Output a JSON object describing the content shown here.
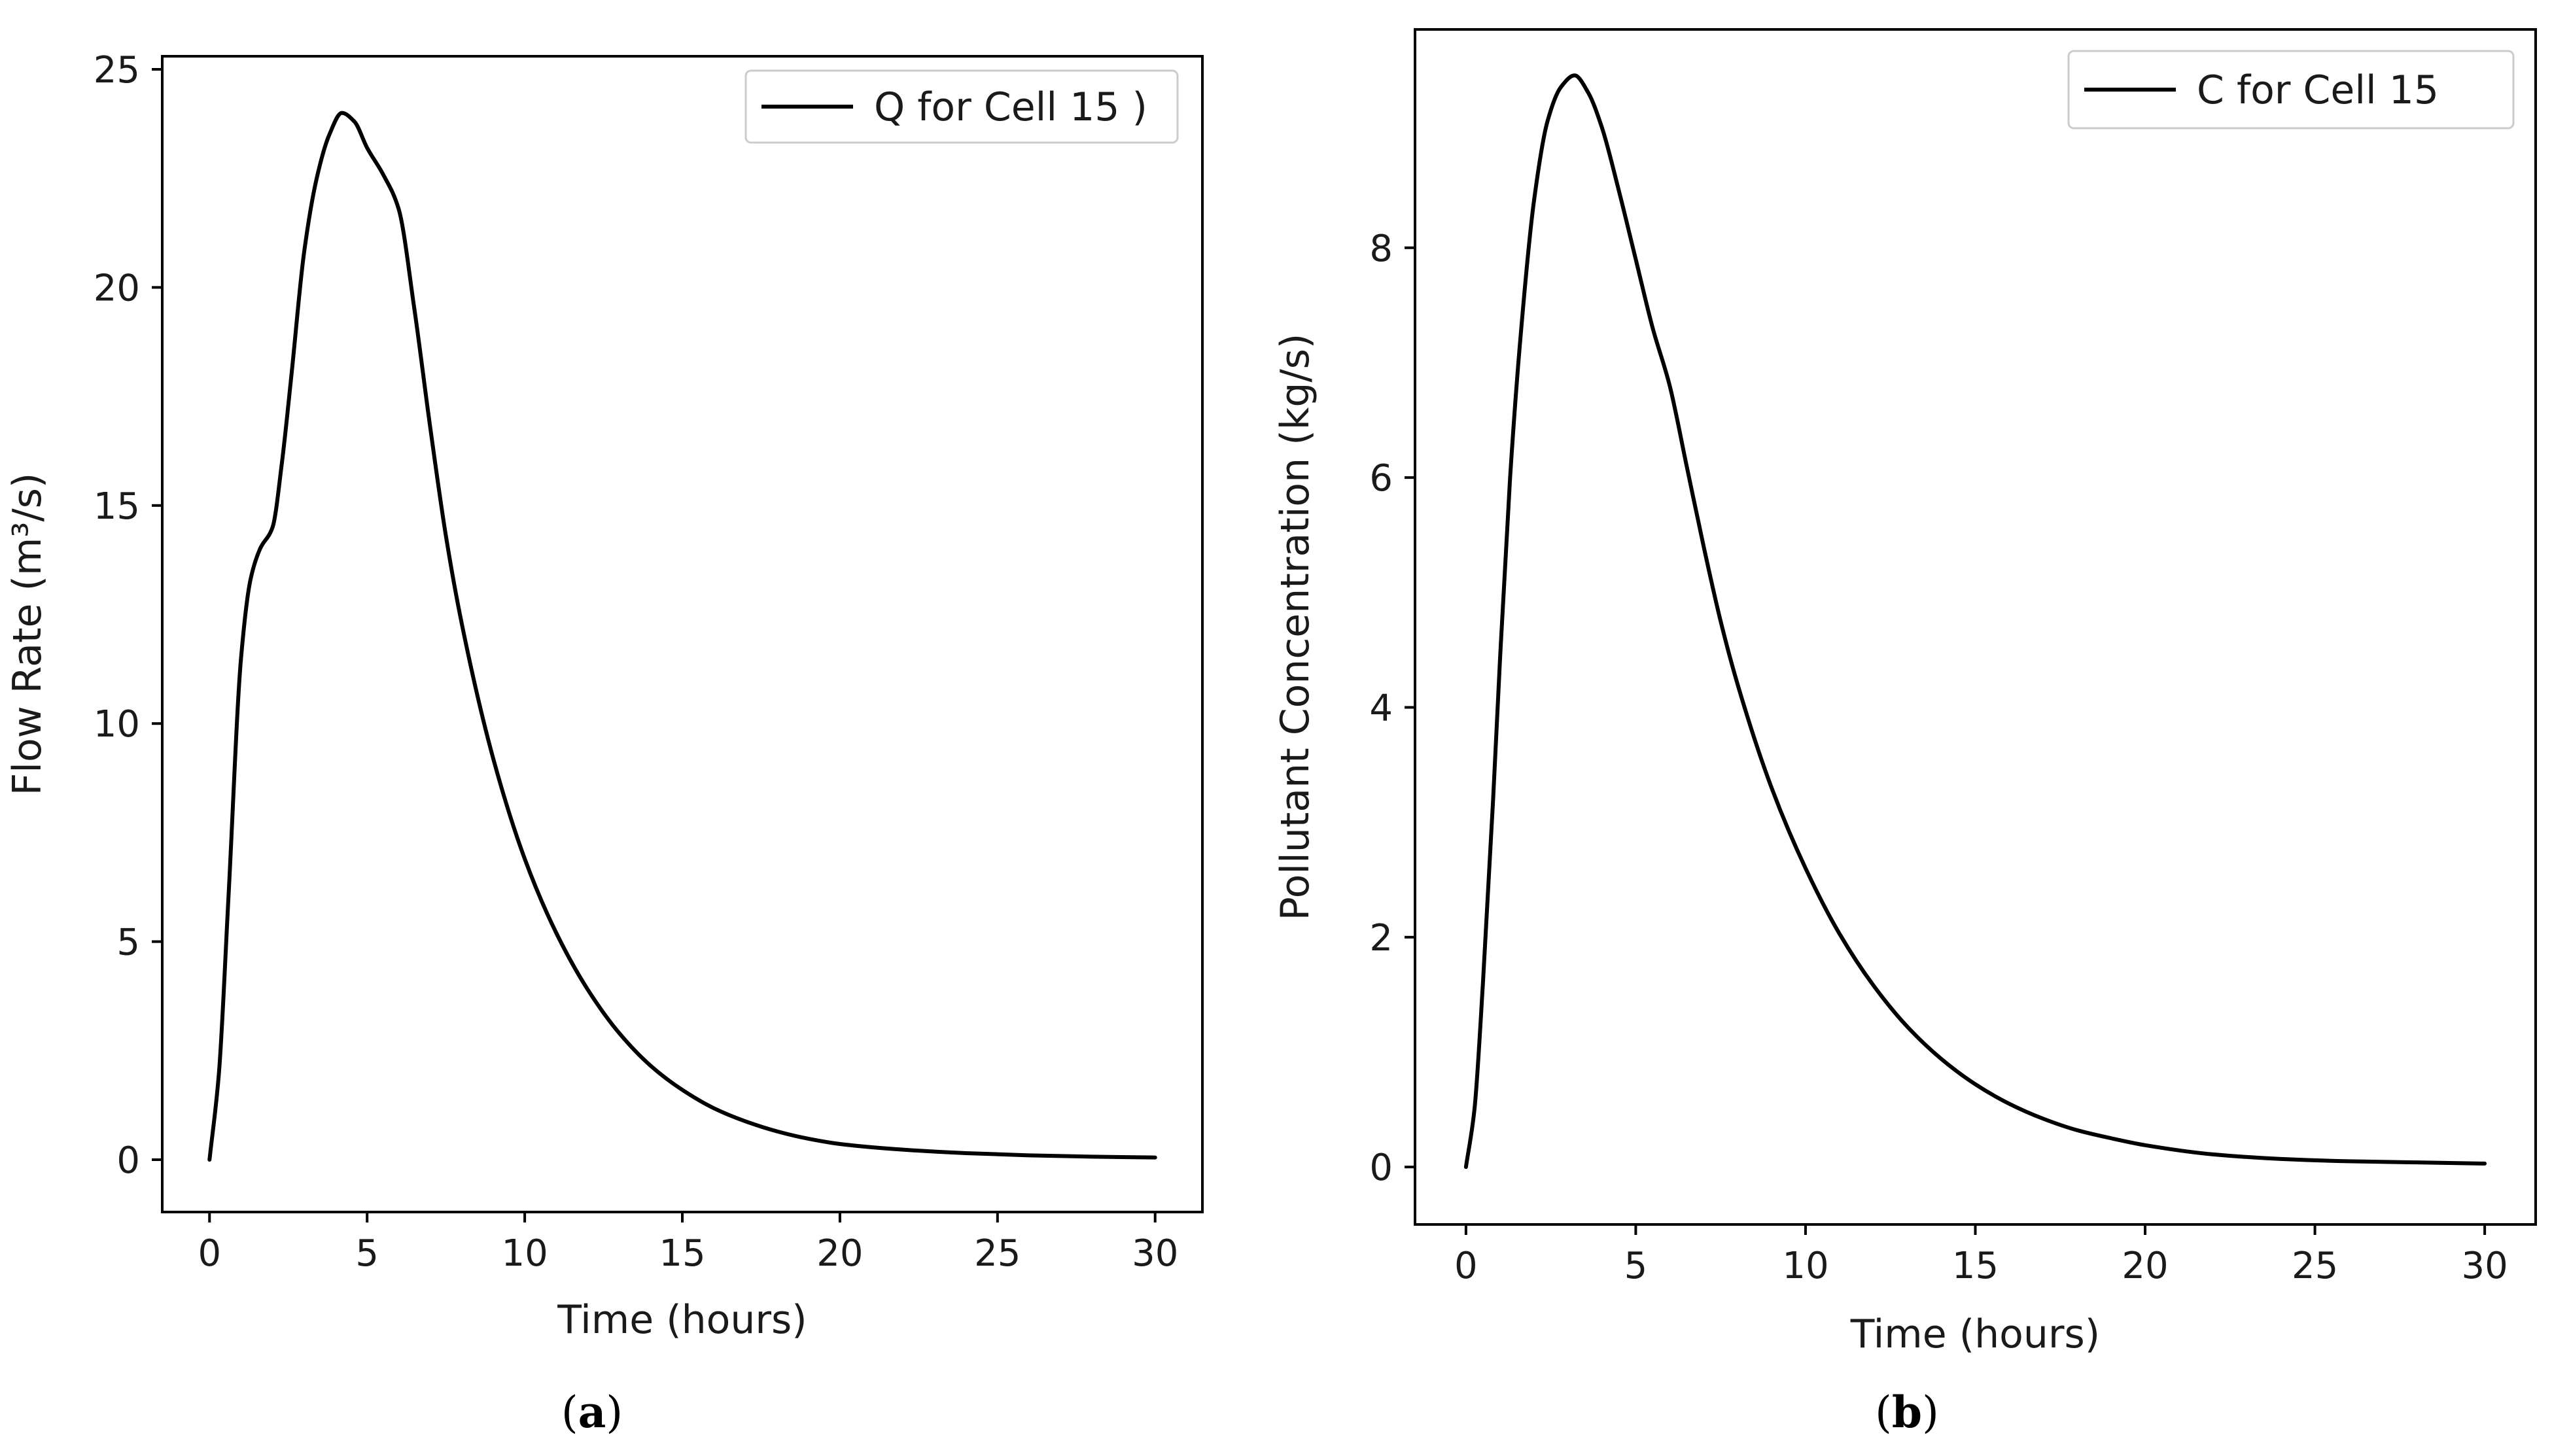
{
  "colors": {
    "line": "#000000",
    "frame": "#000000",
    "background": "#ffffff",
    "legend_border": "#cccccc"
  },
  "panels": [
    {
      "label_open": "(",
      "label_letter": "a",
      "label_close": ")"
    },
    {
      "label_open": "(",
      "label_letter": "b",
      "label_close": ")"
    }
  ],
  "chart_data": [
    {
      "type": "line",
      "xlabel": "Time (hours)",
      "ylabel": "Flow Rate (m³/s)",
      "xlim": [
        -1.5,
        31.5
      ],
      "ylim": [
        -1.2,
        25.3
      ],
      "xticks": [
        0,
        5,
        10,
        15,
        20,
        25,
        30
      ],
      "yticks": [
        0,
        5,
        10,
        15,
        20,
        25
      ],
      "legend_position": "top-right",
      "series": [
        {
          "name": "Q for Cell 15 )",
          "x": [
            0,
            0.3,
            0.6,
            1.0,
            1.3,
            1.6,
            2.0,
            2.3,
            2.6,
            3.0,
            3.4,
            3.8,
            4.2,
            4.6,
            5.0,
            5.5,
            6.0,
            6.5,
            7.0,
            7.5,
            8.0,
            9.0,
            10.0,
            11.0,
            12.0,
            13.0,
            14.0,
            15.0,
            16.0,
            17.0,
            18.0,
            19.0,
            20.0,
            22.0,
            24.0,
            26.0,
            28.0,
            30.0
          ],
          "values": [
            0,
            2.0,
            6.0,
            11.5,
            13.3,
            14.0,
            14.5,
            16.0,
            18.0,
            20.8,
            22.5,
            23.5,
            24.0,
            23.8,
            23.2,
            22.6,
            21.8,
            19.5,
            16.8,
            14.3,
            12.3,
            9.2,
            6.9,
            5.2,
            3.9,
            2.9,
            2.15,
            1.6,
            1.18,
            0.88,
            0.65,
            0.48,
            0.36,
            0.23,
            0.15,
            0.1,
            0.07,
            0.05
          ]
        }
      ]
    },
    {
      "type": "line",
      "xlabel": "Time (hours)",
      "ylabel": "Pollutant Concentration (kg/s)",
      "xlim": [
        -1.5,
        31.5
      ],
      "ylim": [
        -0.5,
        9.9
      ],
      "xticks": [
        0,
        5,
        10,
        15,
        20,
        25,
        30
      ],
      "yticks": [
        0,
        2,
        4,
        6,
        8
      ],
      "legend_position": "top-right",
      "series": [
        {
          "name": "C for Cell 15",
          "x": [
            0,
            0.25,
            0.5,
            0.8,
            1.0,
            1.3,
            1.6,
            2.0,
            2.4,
            2.8,
            3.2,
            3.6,
            4.0,
            4.5,
            5.0,
            5.5,
            6.0,
            6.5,
            7.0,
            7.5,
            8.0,
            9.0,
            10.0,
            11.0,
            12.0,
            13.0,
            14.0,
            15.0,
            16.0,
            17.0,
            18.0,
            19.0,
            20.0,
            22.0,
            24.0,
            26.0,
            28.0,
            30.0
          ],
          "values": [
            0,
            0.5,
            1.6,
            3.2,
            4.4,
            6.0,
            7.2,
            8.4,
            9.1,
            9.4,
            9.5,
            9.35,
            9.05,
            8.5,
            7.9,
            7.3,
            6.8,
            6.1,
            5.4,
            4.75,
            4.2,
            3.3,
            2.6,
            2.03,
            1.58,
            1.22,
            0.94,
            0.72,
            0.55,
            0.42,
            0.32,
            0.25,
            0.19,
            0.11,
            0.07,
            0.05,
            0.04,
            0.03
          ]
        }
      ]
    }
  ]
}
